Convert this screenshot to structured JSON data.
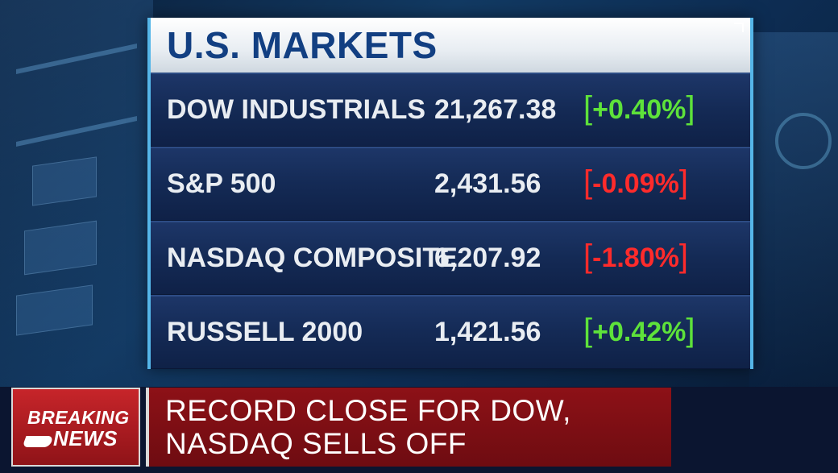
{
  "board": {
    "title": "U.S. MARKETS",
    "rows": [
      {
        "name": "DOW INDUSTRIALS",
        "value": "21,267.38",
        "change": "+0.40%",
        "direction": "up"
      },
      {
        "name": "S&P 500",
        "value": "2,431.56",
        "change": "-0.09%",
        "direction": "down"
      },
      {
        "name": "NASDAQ COMPOSITE",
        "value": "6,207.92",
        "change": "-1.80%",
        "direction": "down"
      },
      {
        "name": "RUSSELL 2000",
        "value": "1,421.56",
        "change": "+0.42%",
        "direction": "up"
      }
    ]
  },
  "news": {
    "badge_line1": "BREAKING",
    "badge_line2": "NEWS",
    "headline_line1": "RECORD CLOSE FOR DOW,",
    "headline_line2": "NASDAQ SELLS OFF"
  },
  "colors": {
    "up": "#5ee23a",
    "down": "#ff2b2b",
    "title": "#123f82",
    "accent": "#55b6e8"
  }
}
